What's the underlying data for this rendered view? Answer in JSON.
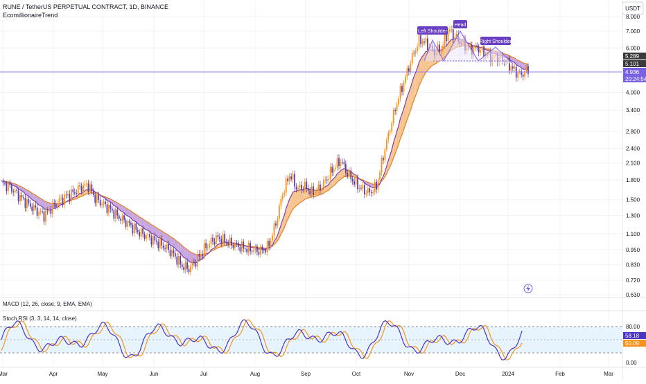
{
  "header": {
    "symbol_line": "RUNE / TetherUS PERPETUAL CONTRACT, 1D, BINANCE",
    "indicator": "EcomillionaireTrend"
  },
  "currency_button": "USDT",
  "price_labels": {
    "upper": "5.289",
    "mid": "5.101",
    "last": "4.936",
    "countdown": "20:24:54"
  },
  "pattern_labels": [
    "Left Shoulder",
    "Head",
    "Right Shoulder"
  ],
  "macd_label": "MACD (12, 26, close, 9, EMA, EMA)",
  "stoch_label": "Stoch RSI (3, 3, 14, 14, close)",
  "stoch_values": {
    "k": "58.18",
    "d": "50.09"
  },
  "colors": {
    "up": "#f7931a",
    "down": "#5c3ea6",
    "band_orange": "#f6c58f",
    "band_purple": "#c7a6e0",
    "stoch_k": "#4a35c4",
    "stoch_d": "#f7931a",
    "pattern_label_bg": "#6a3fc2"
  },
  "chart_data": {
    "type": "candlestick",
    "x_tick_labels": [
      "Mar",
      "Apr",
      "May",
      "Jun",
      "Jul",
      "Aug",
      "Sep",
      "Oct",
      "Nov",
      "Dec",
      "2024",
      "Feb",
      "Mar"
    ],
    "y_tick_labels": [
      "8.000",
      "7.000",
      "6.000",
      "4.000",
      "3.400",
      "2.800",
      "2.400",
      "2.100",
      "1.800",
      "1.500",
      "1.300",
      "1.100",
      "0.950",
      "0.830",
      "0.720",
      "0.630"
    ],
    "y_scale": "log",
    "ylim": [
      0.63,
      8.3
    ],
    "approx_close_path": [
      [
        1.74,
        1.7,
        1.6,
        1.5,
        1.42,
        1.35,
        1.3,
        1.4,
        1.48,
        1.55,
        1.6,
        1.68,
        1.72
      ],
      [
        1.52,
        1.45,
        1.38,
        1.3,
        1.24,
        1.18,
        1.12,
        1.08,
        1.04,
        1.0,
        0.96,
        0.9,
        0.82
      ],
      [
        0.8,
        0.86,
        0.95,
        1.02,
        1.06,
        1.03,
        1.0,
        0.98,
        0.96,
        0.95,
        0.94,
        0.98
      ],
      [
        1.2,
        1.6,
        1.9,
        1.65,
        1.7,
        1.6,
        1.65,
        1.8,
        2.0,
        2.15,
        1.9,
        1.75,
        1.65
      ],
      [
        1.6,
        1.7,
        2.3,
        3.0,
        3.8,
        4.6,
        5.6,
        6.5,
        6.2,
        5.8,
        6.0,
        7.1
      ],
      [
        6.6,
        6.2,
        5.9,
        6.0,
        5.7,
        5.5,
        5.5,
        5.3,
        4.9,
        4.7,
        4.936
      ]
    ],
    "stoch_rsi": {
      "k_last": 58.18,
      "d_last": 50.09,
      "levels": [
        80,
        50,
        20
      ],
      "ticks": [
        "80.00",
        "0.00"
      ]
    }
  }
}
